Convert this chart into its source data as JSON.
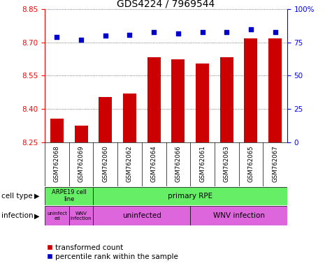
{
  "title": "GDS4224 / 7969544",
  "samples": [
    "GSM762068",
    "GSM762069",
    "GSM762060",
    "GSM762062",
    "GSM762064",
    "GSM762066",
    "GSM762061",
    "GSM762063",
    "GSM762065",
    "GSM762067"
  ],
  "transformed_counts": [
    8.355,
    8.325,
    8.455,
    8.47,
    8.635,
    8.625,
    8.605,
    8.635,
    8.72,
    8.72
  ],
  "percentile_ranks": [
    79,
    77,
    80,
    81,
    83,
    82,
    83,
    83,
    85,
    83
  ],
  "ylim_left": [
    8.25,
    8.85
  ],
  "ylim_right": [
    0,
    100
  ],
  "yticks_left": [
    8.25,
    8.4,
    8.55,
    8.7,
    8.85
  ],
  "yticks_right": [
    0,
    25,
    50,
    75,
    100
  ],
  "bar_color": "#cc0000",
  "dot_color": "#0000cc",
  "cell_type_color": "#66ee66",
  "infection_color": "#dd66dd",
  "xtick_bg_color": "#cccccc",
  "background_color": "#ffffff",
  "title_fontsize": 10,
  "tick_fontsize": 7.5,
  "annotation_fontsize": 7.5,
  "legend_fontsize": 7.5
}
